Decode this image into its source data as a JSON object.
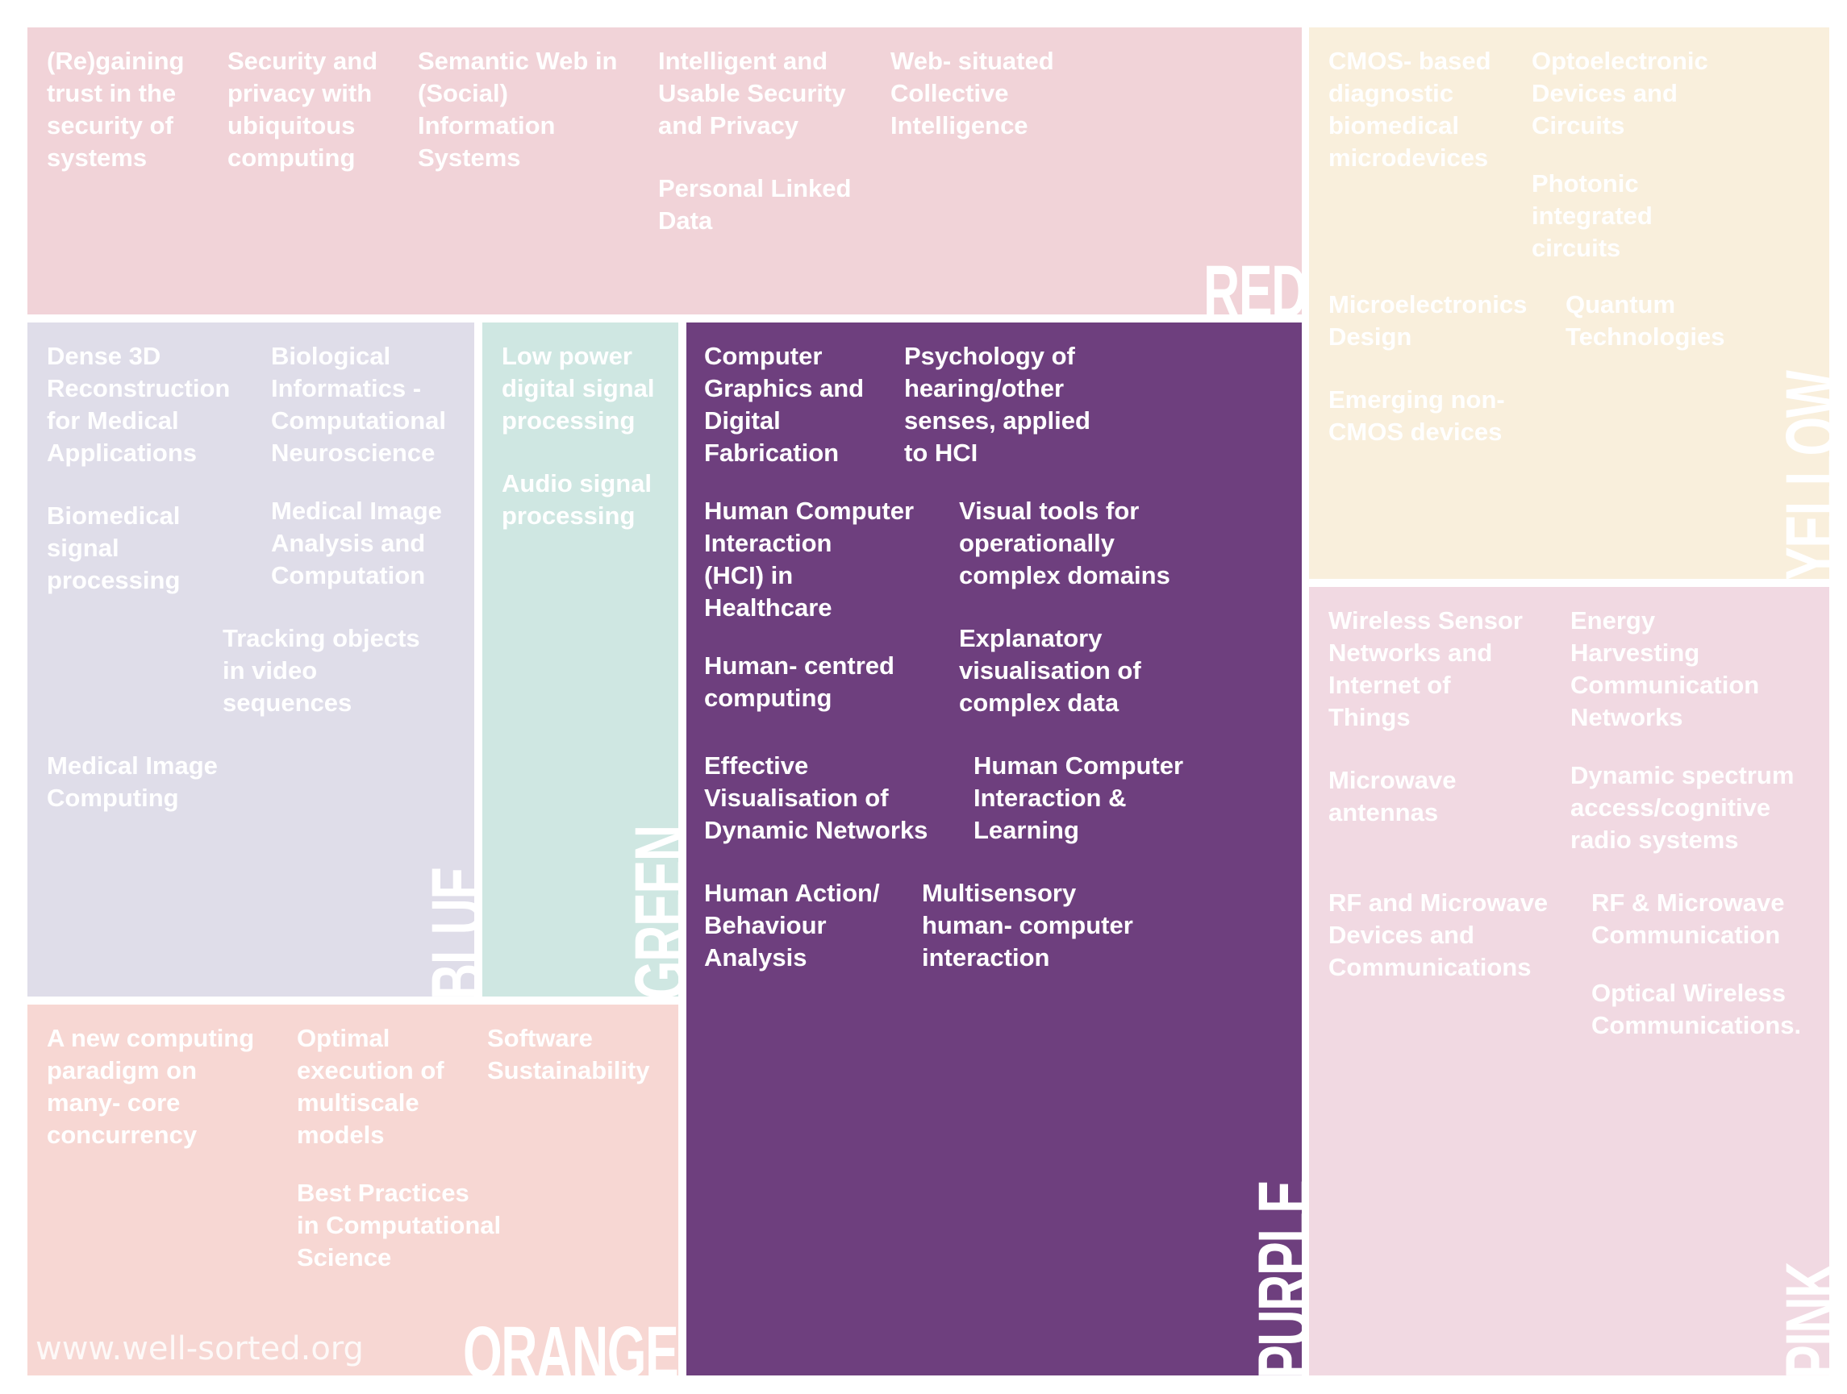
{
  "colors": {
    "red": "#f1d3d8",
    "yellow": "#f9efdc",
    "blue": "#dfdde9",
    "green": "#cfe7e2",
    "purple": "#6e3f7e",
    "pink": "#f1d9e2",
    "orange": "#f7d7d3"
  },
  "regions": {
    "red": {
      "label": "RED",
      "topics": [
        "(Re)gaining\ntrust in the\nsecurity of\nsystems",
        "Security and\nprivacy with\nubiquitous\ncomputing",
        "Semantic Web in\n(Social)\nInformation\nSystems",
        "Intelligent and\nUsable Security\nand Privacy",
        "Personal Linked\nData",
        "Web- situated\nCollective\nIntelligence"
      ]
    },
    "yellow": {
      "label": "YELLOW",
      "topics": [
        "CMOS- based\ndiagnostic\nbiomedical\nmicrodevices",
        "Optoelectronic\nDevices and\nCircuits",
        "Photonic\nintegrated\ncircuits",
        "Microelectronics\nDesign",
        "Quantum\nTechnologies",
        "Emerging non-\nCMOS devices"
      ]
    },
    "blue": {
      "label": "BLUE",
      "topics": [
        "Dense 3D\nReconstruction\nfor Medical\nApplications",
        "Biological\nInformatics -\nComputational\nNeuroscience",
        "Biomedical\nsignal\nprocessing",
        "Medical Image\nAnalysis and\nComputation",
        "Tracking objects\nin video\nsequences",
        "Medical Image\nComputing"
      ]
    },
    "green": {
      "label": "GREEN",
      "topics": [
        "Low power\ndigital signal\nprocessing",
        "Audio signal\nprocessing"
      ]
    },
    "purple": {
      "label": "PURPLE",
      "topics": [
        "Computer\nGraphics and\nDigital\nFabrication",
        "Psychology of\nhearing/other\nsenses, applied\nto HCI",
        "Human Computer\nInteraction\n(HCI) in\nHealthcare",
        "Visual tools for\noperationally\ncomplex domains",
        "Human- centred\ncomputing",
        "Explanatory\nvisualisation of\ncomplex data",
        "Effective\nVisualisation of\nDynamic Networks",
        "Human Computer\nInteraction &\nLearning",
        "Human Action/\nBehaviour\nAnalysis",
        "Multisensory\nhuman- computer\ninteraction"
      ]
    },
    "pink": {
      "label": "PINK",
      "topics": [
        "Wireless Sensor\nNetworks and\nInternet of\nThings",
        "Energy\nHarvesting\nCommunication\nNetworks",
        "Microwave\nantennas",
        "Dynamic spectrum\naccess/cognitive\nradio systems",
        "RF and Microwave\nDevices and\nCommunications",
        "RF & Microwave\nCommunication",
        "Optical Wireless\nCommunications."
      ]
    },
    "orange": {
      "label": "ORANGE",
      "topics": [
        "A new computing\nparadigm on\nmany- core\nconcurrency",
        "Optimal\nexecution of\nmultiscale\nmodels",
        "Software\nSustainability",
        "Best Practices\nin Computational\nScience"
      ]
    }
  },
  "watermark": "www.well-sorted.org"
}
